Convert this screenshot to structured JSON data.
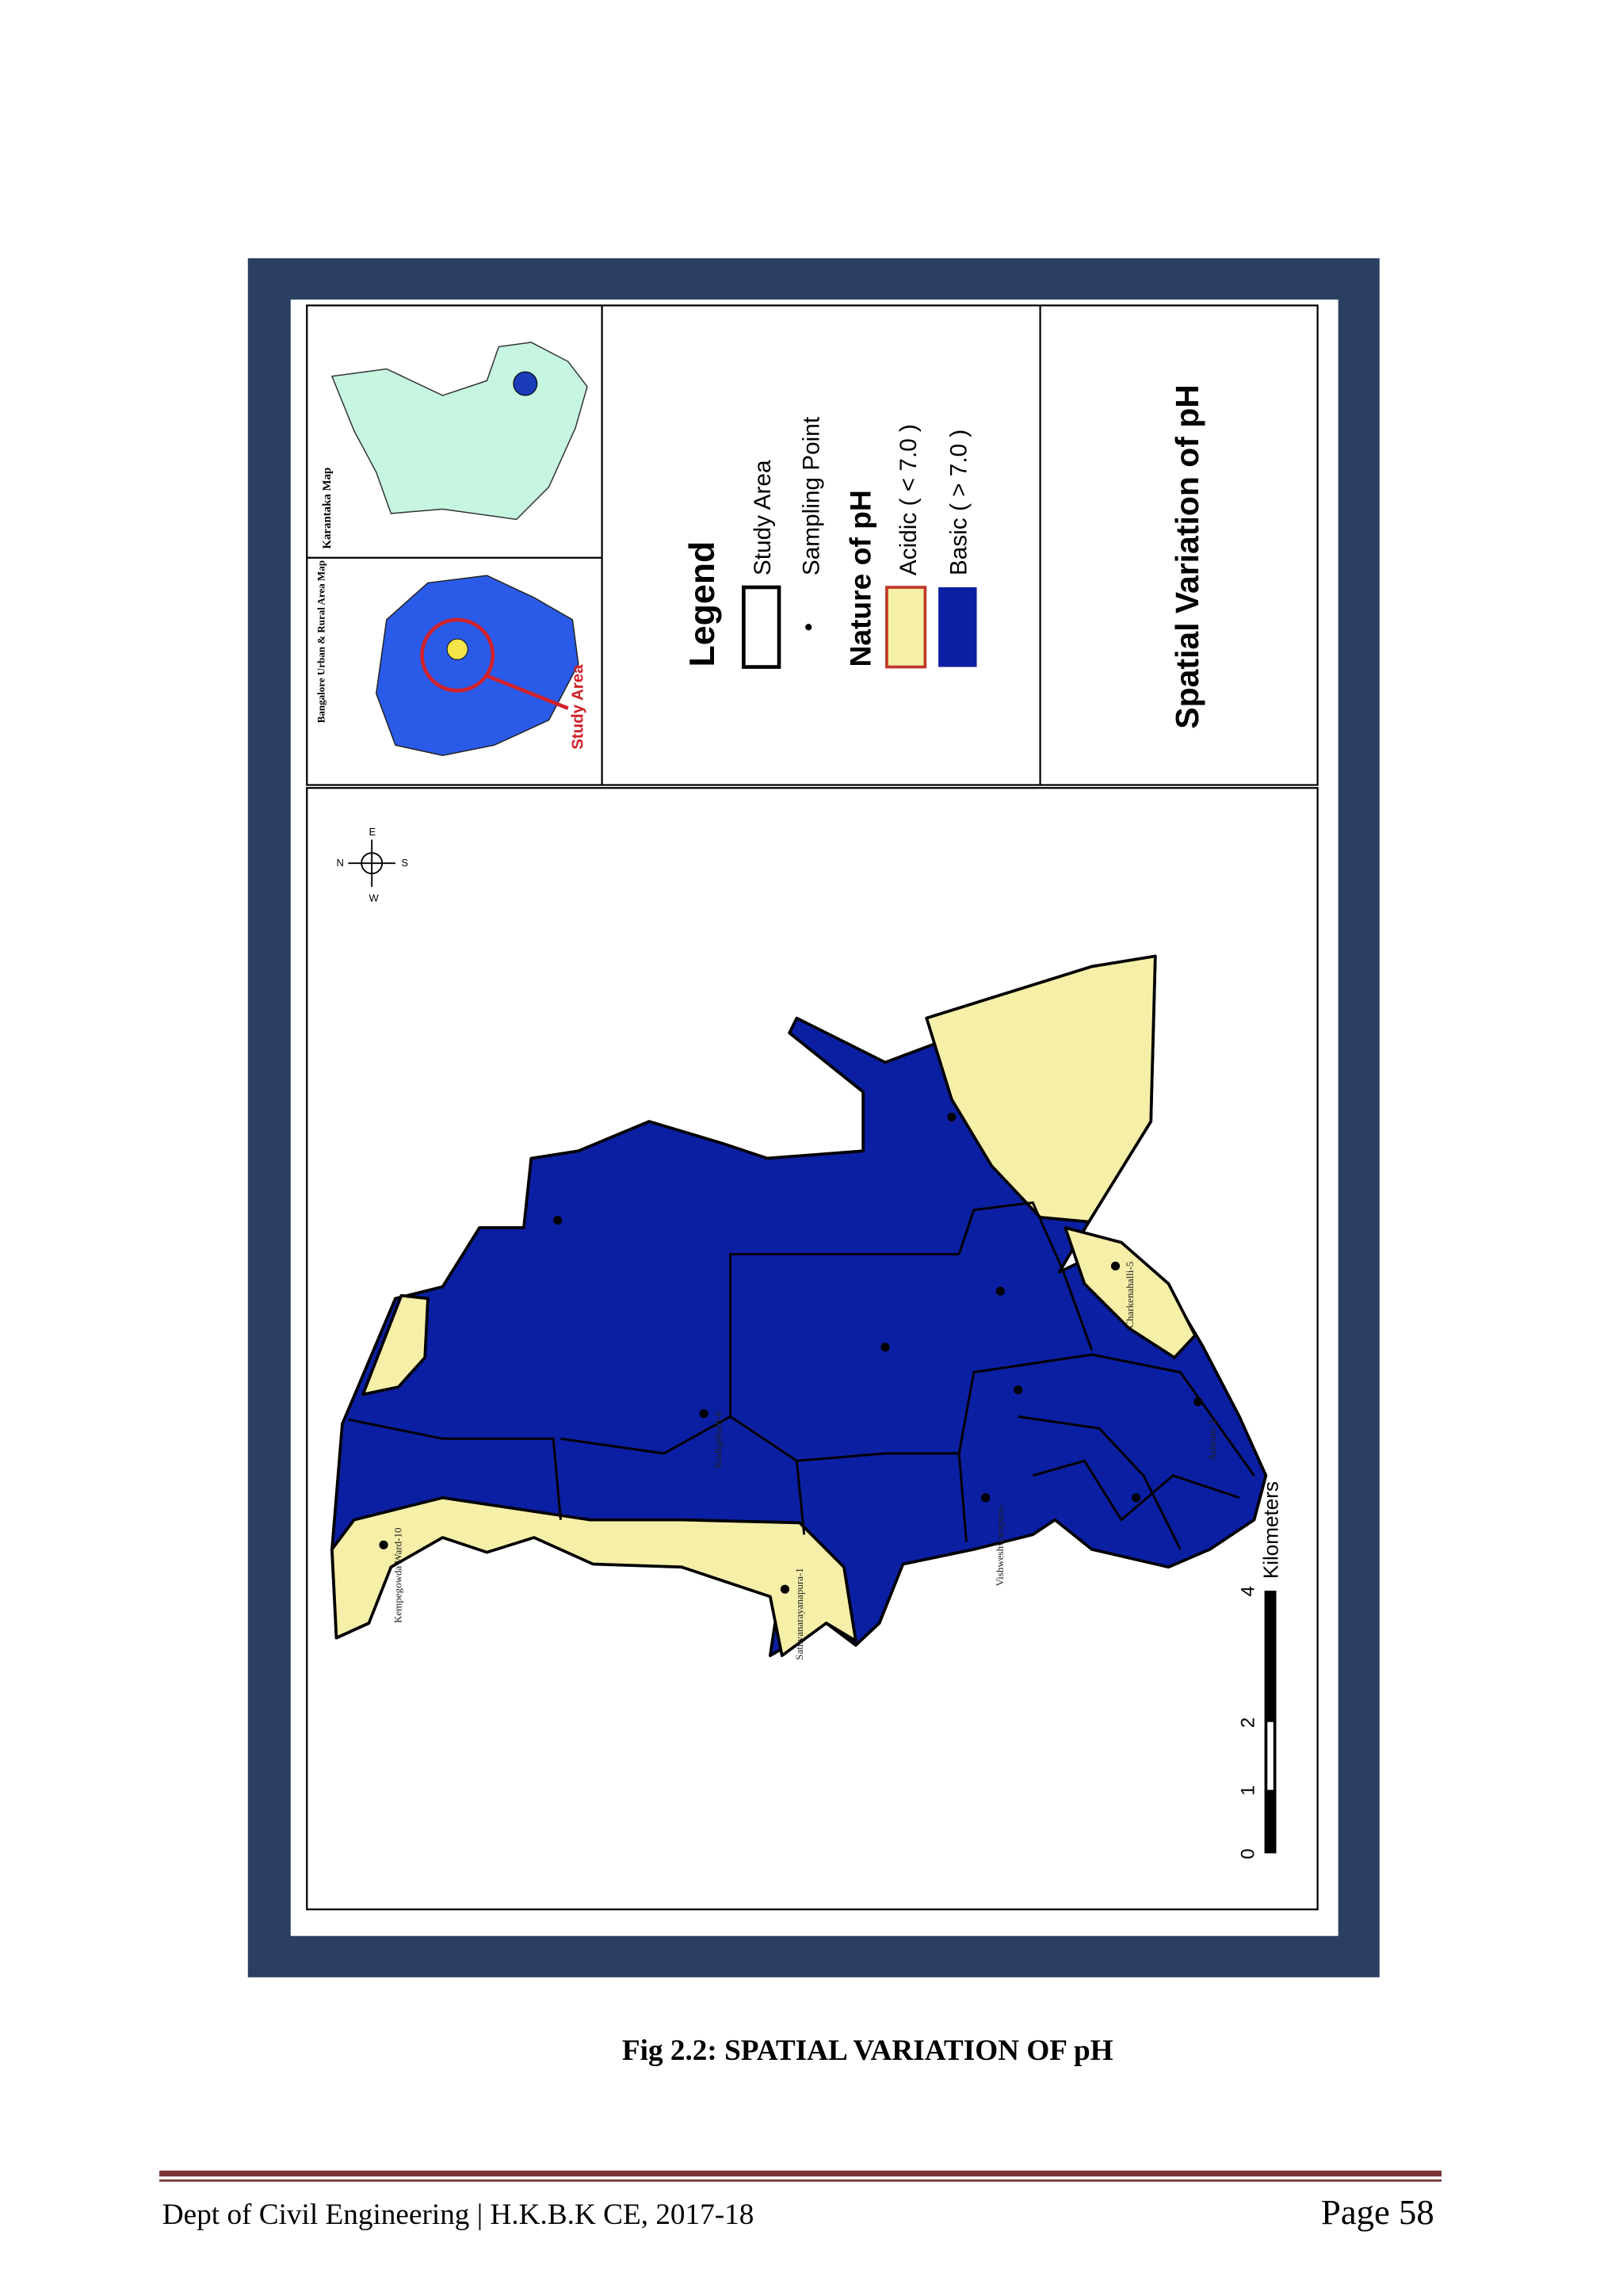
{
  "figure": {
    "caption": "Fig 2.2: SPATIAL VARIATION OF pH",
    "map_title": "Spatial Variation of pH",
    "legend": {
      "title": "Legend",
      "study_area": "Study Area",
      "sampling_point": "Sampling Point",
      "nature_title": "Nature of pH",
      "acidic": "Acidic ( < 7.0 )",
      "basic": "Basic ( > 7.0 )"
    },
    "insets": {
      "karnataka": "Karantaka Map",
      "bangalore": "Bangalore Urban & Rural Area Map",
      "study_area": "Study Area"
    },
    "compass": [
      "N",
      "E",
      "S",
      "W"
    ],
    "scale": {
      "ticks": [
        "0",
        "1",
        "2",
        "4"
      ],
      "unit": "Kilometers"
    },
    "sample_labels": [
      "Kempegowda Ward-10",
      "Sathyanarayanapura-1",
      "Vishweshwarapura-",
      "Charkenahalli-5",
      "Ashram-2",
      "Kodigehalli-6"
    ]
  },
  "footer": {
    "left": "Dept of Civil Engineering | H.K.B.K CE, 2017-18",
    "right": "Page 58"
  }
}
